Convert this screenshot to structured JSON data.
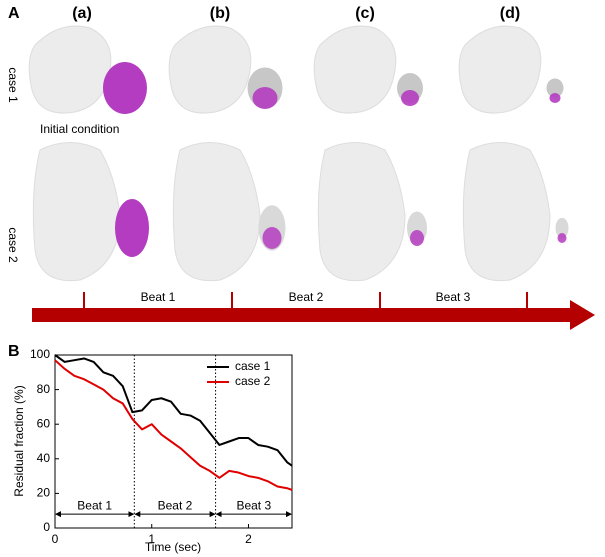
{
  "figure": {
    "panel_a": "A",
    "panel_b": "B",
    "columns": [
      "(a)",
      "(b)",
      "(c)",
      "(d)"
    ],
    "rows": [
      "case 1",
      "case 2"
    ],
    "note": "Initial condition",
    "beats": [
      "Beat 1",
      "Beat 2",
      "Beat 3"
    ]
  },
  "chart_data": {
    "type": "line",
    "xlabel": "Time  (sec)",
    "ylabel": "Residual fraction  (%)",
    "x": [
      0,
      0.1,
      0.2,
      0.3,
      0.4,
      0.5,
      0.6,
      0.7,
      0.8,
      0.9,
      1.0,
      1.1,
      1.2,
      1.3,
      1.4,
      1.5,
      1.6,
      1.7,
      1.8,
      1.9,
      2.0,
      2.1,
      2.2,
      2.3,
      2.4,
      2.45
    ],
    "series": [
      {
        "name": "case 1",
        "color": "#000000",
        "values": [
          100,
          96,
          97,
          98,
          96,
          90,
          88,
          82,
          67,
          68,
          74,
          75,
          73,
          66,
          65,
          62,
          55,
          48,
          50,
          52,
          52,
          48,
          47,
          45,
          38,
          36
        ]
      },
      {
        "name": "case 2",
        "color": "#e00000",
        "values": [
          97,
          92,
          88,
          86,
          83,
          80,
          75,
          72,
          63,
          57,
          60,
          54,
          50,
          46,
          41,
          36,
          33,
          29,
          33,
          32,
          30,
          29,
          27,
          24,
          23,
          22
        ]
      }
    ],
    "xlim": [
      0,
      2.45
    ],
    "xticks": [
      0,
      1,
      2
    ],
    "ylim": [
      0,
      100
    ],
    "yticks": [
      0,
      20,
      40,
      60,
      80,
      100
    ],
    "vlines": [
      0.82,
      1.66
    ],
    "annotations": [
      {
        "text": "Beat 1",
        "x": [
          0,
          0.82
        ],
        "y": 8
      },
      {
        "text": "Beat 2",
        "x": [
          0.82,
          1.66
        ],
        "y": 8
      },
      {
        "text": "Beat 3",
        "x": [
          1.66,
          2.45
        ],
        "y": 8
      }
    ],
    "legend": "top-right"
  }
}
